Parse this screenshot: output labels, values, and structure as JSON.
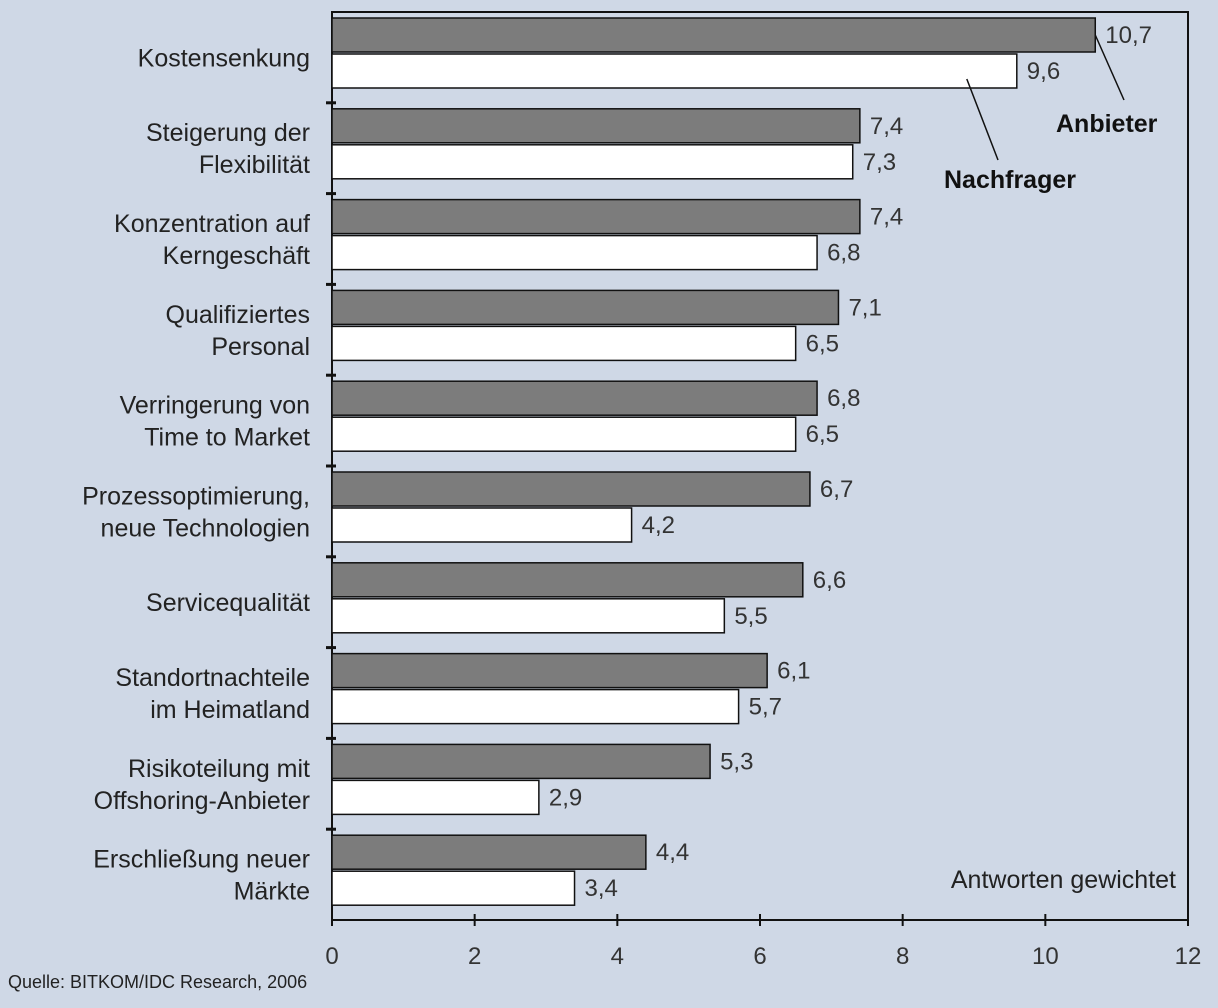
{
  "chart_data": {
    "type": "bar",
    "orientation": "horizontal",
    "categories": [
      [
        "Kostensenkung"
      ],
      [
        "Steigerung der",
        "Flexibilität"
      ],
      [
        "Konzentration auf",
        "Kerngeschäft"
      ],
      [
        "Qualifiziertes",
        "Personal"
      ],
      [
        "Verringerung von",
        "Time to Market"
      ],
      [
        "Prozessoptimierung,",
        "neue Technologien"
      ],
      [
        "Servicequalität"
      ],
      [
        "Standortnachteile",
        "im Heimatland"
      ],
      [
        "Risikoteilung mit",
        "Offshoring-Anbieter"
      ],
      [
        "Erschließung neuer",
        "Märkte"
      ]
    ],
    "series": [
      {
        "name": "Anbieter",
        "color": "#7c7c7c",
        "values": [
          10.7,
          7.4,
          7.4,
          7.1,
          6.8,
          6.7,
          6.6,
          6.1,
          5.3,
          4.4
        ],
        "labels": [
          "10,7",
          "7,4",
          "7,4",
          "7,1",
          "6,8",
          "6,7",
          "6,6",
          "6,1",
          "5,3",
          "4,4"
        ]
      },
      {
        "name": "Nachfrager",
        "color": "#ffffff",
        "values": [
          9.6,
          7.3,
          6.8,
          6.5,
          6.5,
          4.2,
          5.5,
          5.7,
          2.9,
          3.4
        ],
        "labels": [
          "9,6",
          "7,3",
          "6,8",
          "6,5",
          "6,5",
          "4,2",
          "5,5",
          "5,7",
          "2,9",
          "3,4"
        ]
      }
    ],
    "xlim": [
      0,
      12
    ],
    "xticks": [
      0,
      2,
      4,
      6,
      8,
      10,
      12
    ],
    "xtick_labels": [
      "0",
      "2",
      "4",
      "6",
      "8",
      "10",
      "12"
    ],
    "annotation": "Antworten gewichtet",
    "legend": "callouts top-right"
  },
  "source": "Quelle: BITKOM/IDC Research, 2006"
}
